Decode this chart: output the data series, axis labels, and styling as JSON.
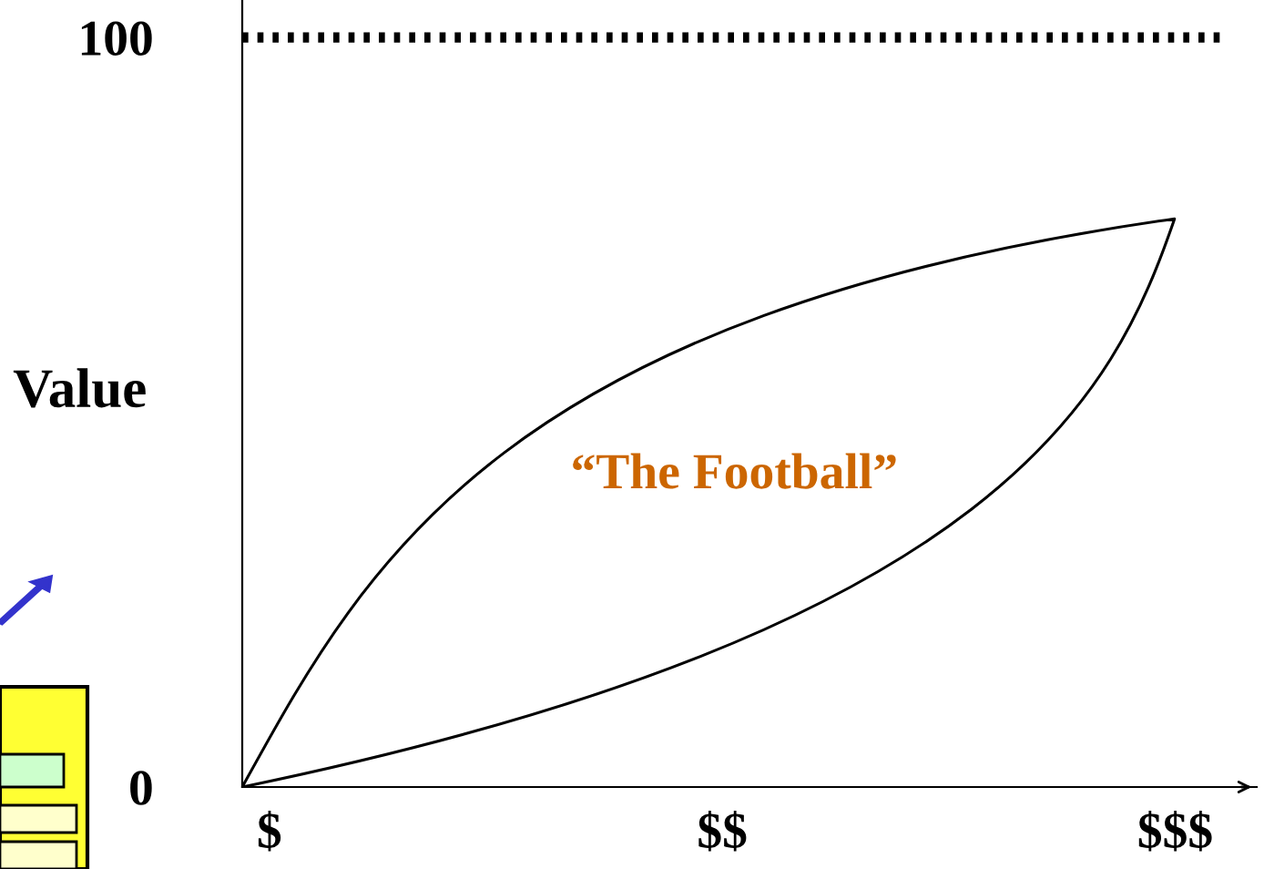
{
  "chart_data": {
    "type": "line",
    "ylabel": "Value",
    "categories": [
      "$",
      "$$",
      "$$$"
    ],
    "ylim": [
      0,
      105
    ],
    "yticks": [
      0,
      100
    ],
    "ref_lines": [
      {
        "axis": "y",
        "value": 100,
        "label": null,
        "color": "#000000",
        "line_style": "dotted"
      }
    ],
    "annotations": [
      "“The Football”"
    ],
    "grid": false,
    "legend": false
  }
}
